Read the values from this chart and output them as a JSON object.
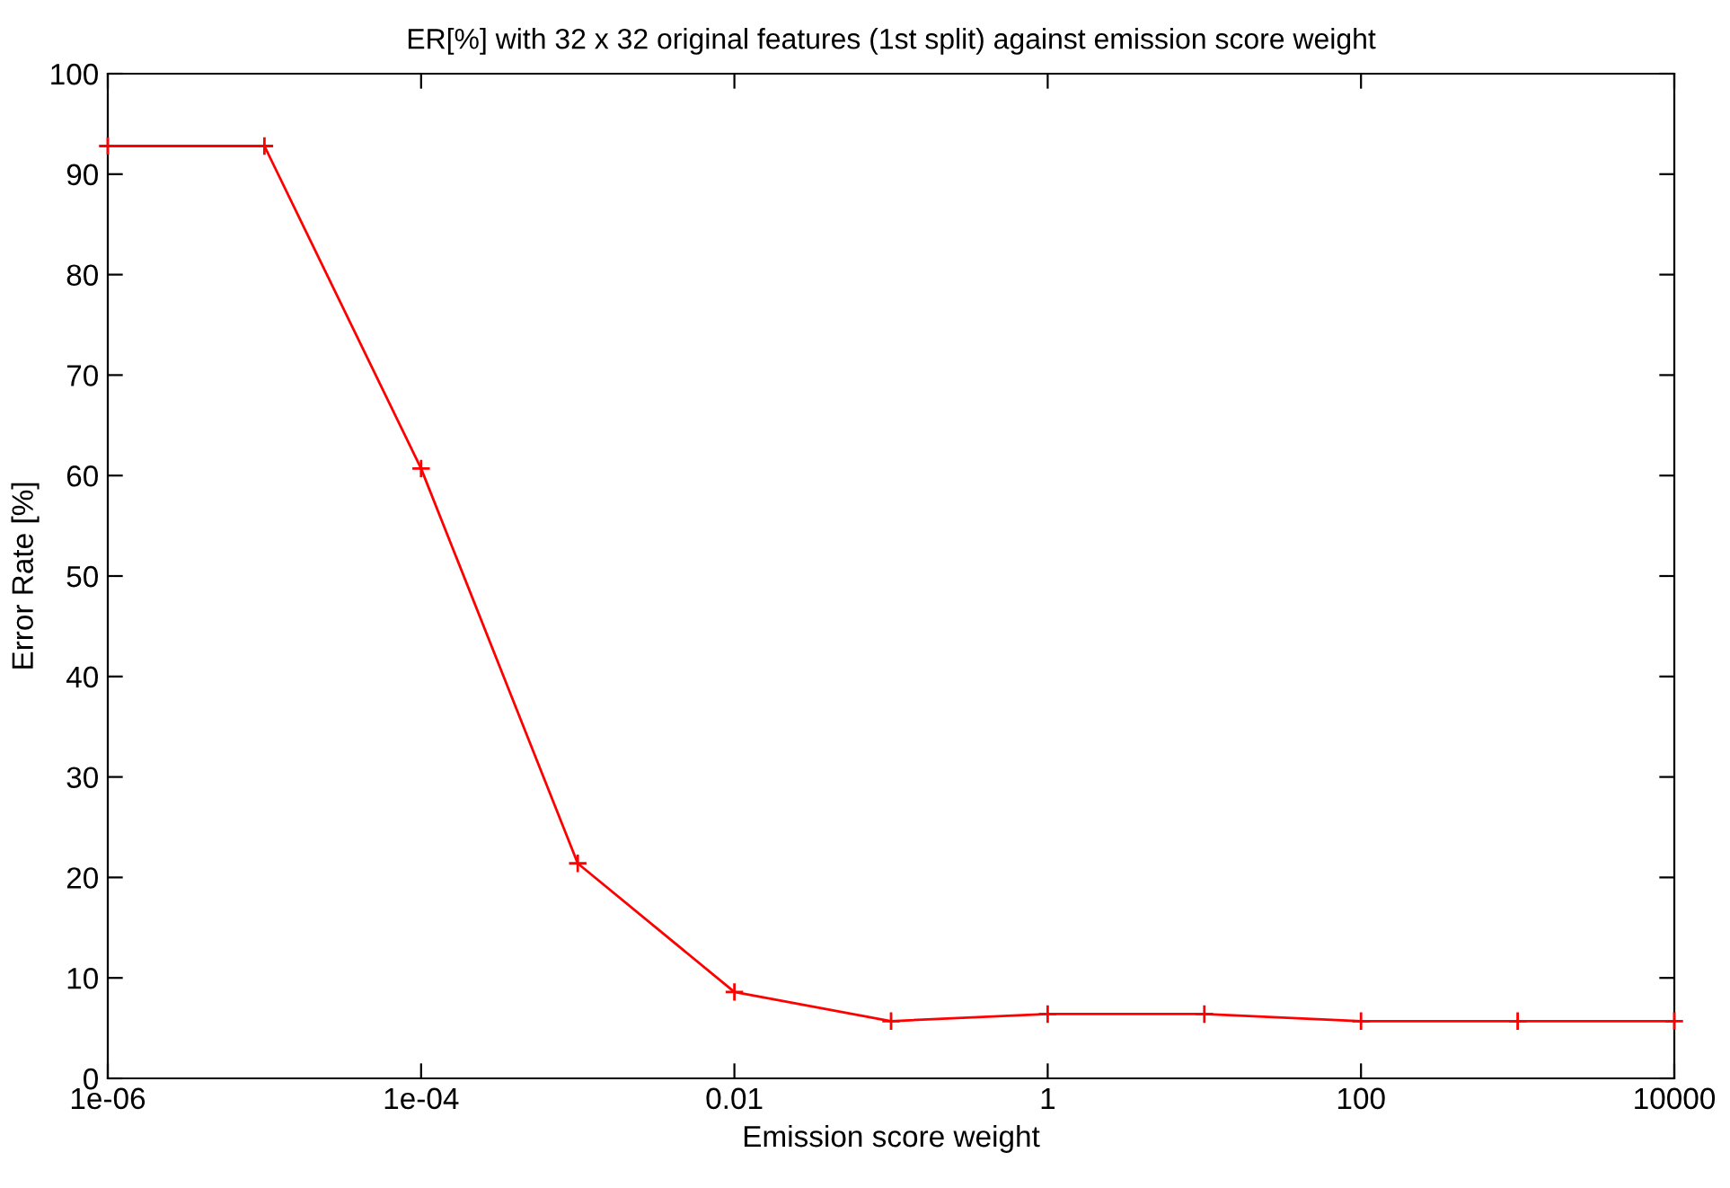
{
  "chart_data": {
    "type": "line",
    "title": "ER[%] with 32 x 32 original features (1st split) against emission score weight",
    "xlabel": "Emission score weight",
    "ylabel": "Error Rate [%]",
    "x": [
      1e-06,
      1e-05,
      0.0001,
      0.001,
      0.01,
      0.1,
      1,
      10,
      100,
      1000,
      10000
    ],
    "series": [
      {
        "color": "#ff0000",
        "values": [
          92.8,
          92.8,
          60.7,
          21.4,
          8.6,
          5.7,
          6.4,
          6.4,
          5.7,
          5.7,
          5.7
        ]
      }
    ],
    "log": "x",
    "xlim": [
      1e-06,
      10000
    ],
    "xticks": [
      {
        "value": 1e-06,
        "label": "1e-06"
      },
      {
        "value": 0.0001,
        "label": "1e-04"
      },
      {
        "value": 0.01,
        "label": "0.01"
      },
      1,
      100,
      10000
    ],
    "ylim": [
      0,
      100
    ],
    "yticks": [
      0,
      10,
      20,
      30,
      40,
      50,
      60,
      70,
      80,
      90,
      100
    ],
    "grid": false,
    "legend": false,
    "marker": "cross",
    "line_style": "solid"
  }
}
